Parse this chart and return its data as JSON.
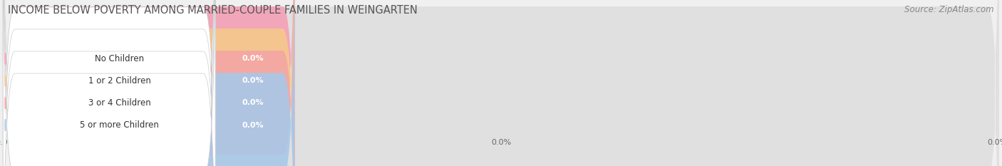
{
  "title": "INCOME BELOW POVERTY AMONG MARRIED-COUPLE FAMILIES IN WEINGARTEN",
  "source": "Source: ZipAtlas.com",
  "categories": [
    "No Children",
    "1 or 2 Children",
    "3 or 4 Children",
    "5 or more Children"
  ],
  "values": [
    0.0,
    0.0,
    0.0,
    0.0
  ],
  "bar_colors": [
    "#f4a0b5",
    "#f5c98a",
    "#f4a5a5",
    "#a8c8e8"
  ],
  "background_color": "#f0f0f0",
  "bar_bg_color": "#e0e0e0",
  "figsize": [
    14.06,
    2.33
  ],
  "title_fontsize": 10.5,
  "source_fontsize": 8.5,
  "label_fontsize": 8.5,
  "value_fontsize": 8.0
}
